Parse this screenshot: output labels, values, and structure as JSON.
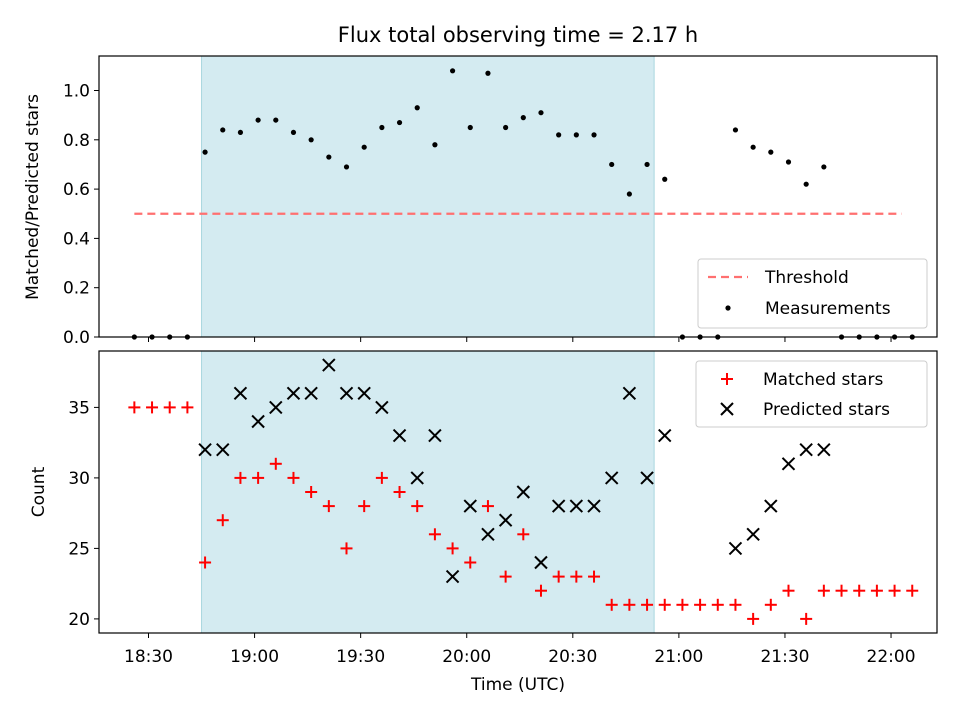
{
  "title": "Flux total observing time = 2.17 h",
  "colors": {
    "threshold": "#ff7070",
    "measurement": "#000000",
    "matched": "#ff0000",
    "predicted": "#000000",
    "highlight": "#d4ebf1",
    "highlight_edge": "#a9d6df"
  },
  "chart_data": [
    {
      "type": "scatter",
      "ylabel": "Matched/Predicted stars",
      "xlim": [
        "18:16",
        "22:13"
      ],
      "ylim": [
        0,
        1.14
      ],
      "y_ticks": [
        0.0,
        0.2,
        0.4,
        0.6,
        0.8,
        1.0
      ],
      "y_tick_labels": [
        "0.0",
        "0.2",
        "0.4",
        "0.6",
        "0.8",
        "1.0"
      ],
      "legend_position": "lower right",
      "highlight_span": [
        "18:45",
        "20:53"
      ],
      "threshold": {
        "name": "Threshold",
        "value": 0.5,
        "x_range": [
          "18:26",
          "22:03"
        ]
      },
      "series": [
        {
          "name": "Measurements",
          "x": [
            "18:26",
            "18:31",
            "18:36",
            "18:41",
            "18:46",
            "18:51",
            "18:56",
            "19:01",
            "19:06",
            "19:11",
            "19:16",
            "19:21",
            "19:26",
            "19:31",
            "19:36",
            "19:41",
            "19:46",
            "19:51",
            "19:56",
            "20:01",
            "20:06",
            "20:11",
            "20:16",
            "20:21",
            "20:26",
            "20:31",
            "20:36",
            "20:41",
            "20:46",
            "20:51",
            "20:56",
            "21:01",
            "21:06",
            "21:11",
            "21:16",
            "21:21",
            "21:26",
            "21:31",
            "21:36",
            "21:41",
            "21:46",
            "21:51",
            "21:56",
            "22:01",
            "22:06"
          ],
          "y": [
            0,
            0,
            0,
            0,
            0.75,
            0.84,
            0.83,
            0.88,
            0.88,
            0.83,
            0.8,
            0.73,
            0.69,
            0.77,
            0.85,
            0.87,
            0.93,
            0.78,
            1.08,
            0.85,
            1.07,
            0.85,
            0.89,
            0.91,
            0.82,
            0.82,
            0.82,
            0.7,
            0.58,
            0.7,
            0.64,
            0,
            0,
            0,
            0.84,
            0.77,
            0.75,
            0.71,
            0.62,
            0.69,
            0,
            0,
            0,
            0,
            0
          ]
        }
      ]
    },
    {
      "type": "scatter",
      "xlabel": "Time (UTC)",
      "ylabel": "Count",
      "xlim": [
        "18:16",
        "22:13"
      ],
      "ylim": [
        19,
        39
      ],
      "x_ticks": [
        "18:30",
        "19:00",
        "19:30",
        "20:00",
        "20:30",
        "21:00",
        "21:30",
        "22:00"
      ],
      "x_tick_labels": [
        "18:30",
        "19:00",
        "19:30",
        "20:00",
        "20:30",
        "21:00",
        "21:30",
        "22:00"
      ],
      "y_ticks": [
        20,
        25,
        30,
        35
      ],
      "y_tick_labels": [
        "20",
        "25",
        "30",
        "35"
      ],
      "legend_position": "upper right",
      "highlight_span": [
        "18:45",
        "20:53"
      ],
      "series": [
        {
          "name": "Matched stars",
          "marker": "plus",
          "x": [
            "18:26",
            "18:31",
            "18:36",
            "18:41",
            "18:46",
            "18:51",
            "18:56",
            "19:01",
            "19:06",
            "19:11",
            "19:16",
            "19:21",
            "19:26",
            "19:31",
            "19:36",
            "19:41",
            "19:46",
            "19:51",
            "19:56",
            "20:01",
            "20:06",
            "20:11",
            "20:16",
            "20:21",
            "20:26",
            "20:31",
            "20:36",
            "20:41",
            "20:46",
            "20:51",
            "20:56",
            "21:01",
            "21:06",
            "21:11",
            "21:16",
            "21:21",
            "21:26",
            "21:31",
            "21:36",
            "21:41",
            "21:46",
            "21:51",
            "21:56",
            "22:01",
            "22:06"
          ],
          "y": [
            35,
            35,
            35,
            35,
            24,
            27,
            30,
            30,
            31,
            30,
            29,
            28,
            25,
            28,
            30,
            29,
            28,
            26,
            25,
            24,
            28,
            23,
            26,
            22,
            23,
            23,
            23,
            21,
            21,
            21,
            21,
            21,
            21,
            21,
            21,
            20,
            21,
            22,
            20,
            22,
            22,
            22,
            22,
            22,
            22
          ]
        },
        {
          "name": "Predicted stars",
          "marker": "x",
          "x": [
            "18:46",
            "18:51",
            "18:56",
            "19:01",
            "19:06",
            "19:11",
            "19:16",
            "19:21",
            "19:26",
            "19:31",
            "19:36",
            "19:41",
            "19:46",
            "19:51",
            "19:56",
            "20:01",
            "20:06",
            "20:11",
            "20:16",
            "20:21",
            "20:26",
            "20:31",
            "20:36",
            "20:41",
            "20:46",
            "20:51",
            "20:56",
            "21:16",
            "21:21",
            "21:26",
            "21:31",
            "21:36",
            "21:41"
          ],
          "y": [
            32,
            32,
            36,
            34,
            35,
            36,
            36,
            38,
            36,
            36,
            35,
            33,
            30,
            33,
            23,
            28,
            26,
            27,
            29,
            24,
            28,
            28,
            28,
            30,
            36,
            30,
            33,
            25,
            26,
            28,
            31,
            32,
            32
          ]
        }
      ]
    }
  ]
}
